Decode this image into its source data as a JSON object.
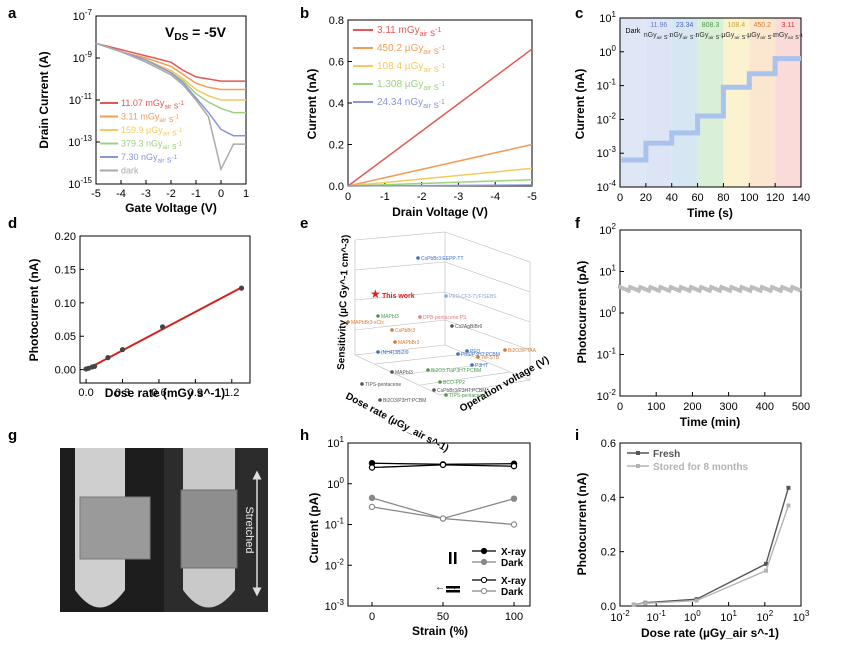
{
  "figure": {
    "panels": {
      "a": {
        "label": "a"
      },
      "b": {
        "label": "b"
      },
      "c": {
        "label": "c"
      },
      "d": {
        "label": "d"
      },
      "e": {
        "label": "e"
      },
      "f": {
        "label": "f"
      },
      "g": {
        "label": "g",
        "annotation": "Stretched"
      },
      "h": {
        "label": "h"
      },
      "i": {
        "label": "i"
      }
    }
  },
  "chart_data": [
    {
      "panel": "a",
      "type": "line",
      "annotation": "V_DS = -5V",
      "xlabel": "Gate Voltage (V)",
      "ylabel": "Drain Current (A)",
      "xlim": [
        -5,
        1
      ],
      "ylim_log10": [
        -15,
        -7
      ],
      "xticks": [
        "-5",
        "-4",
        "-3",
        "-2",
        "-1",
        "0",
        "1"
      ],
      "yticks": [
        "10^-15",
        "10^-13",
        "10^-11",
        "10^-9",
        "10^-7"
      ],
      "x": [
        -5,
        -4,
        -3,
        -2,
        -1.5,
        -1,
        -0.5,
        0,
        0.5,
        1
      ],
      "series": [
        {
          "name": "11.07 mGy_air s^-1",
          "color": "#e45756",
          "values_log10": [
            -8.3,
            -8.6,
            -8.9,
            -9.2,
            -9.6,
            -9.9,
            -10.0,
            -10.1,
            -10.1,
            -10.1
          ]
        },
        {
          "name": "3.11 mGy_air s^-1",
          "color": "#f39c57",
          "values_log10": [
            -8.3,
            -8.7,
            -9.0,
            -9.4,
            -9.8,
            -10.2,
            -10.4,
            -10.5,
            -10.5,
            -10.5
          ]
        },
        {
          "name": "159.9 µGy_air s^-1",
          "color": "#f7c95c",
          "values_log10": [
            -8.3,
            -8.7,
            -9.1,
            -9.6,
            -10.0,
            -10.5,
            -10.8,
            -11.0,
            -11.0,
            -11.0
          ]
        },
        {
          "name": "379.3 nGy_air s^-1",
          "color": "#9bd37c",
          "values_log10": [
            -8.3,
            -8.7,
            -9.1,
            -9.7,
            -10.1,
            -10.7,
            -11.1,
            -11.4,
            -11.6,
            -11.6
          ]
        },
        {
          "name": "7.30 nGy_air s^-1",
          "color": "#8b96d6",
          "values_log10": [
            -8.3,
            -8.7,
            -9.1,
            -9.7,
            -10.2,
            -10.9,
            -11.6,
            -12.4,
            -12.7,
            -12.7
          ]
        },
        {
          "name": "dark",
          "color": "#aaaaaa",
          "values_log10": [
            -8.3,
            -8.7,
            -9.2,
            -9.8,
            -10.3,
            -11.0,
            -11.8,
            -14.3,
            -13.1,
            -13.1
          ]
        }
      ]
    },
    {
      "panel": "b",
      "type": "line",
      "xlabel": "Drain Voltage (V)",
      "ylabel": "Current (nA)",
      "xlim": [
        0,
        -5
      ],
      "ylim": [
        0,
        0.8
      ],
      "xticks": [
        "0",
        "-1",
        "-2",
        "-3",
        "-4",
        "-5"
      ],
      "yticks": [
        "0.0",
        "0.2",
        "0.4",
        "0.6",
        "0.8"
      ],
      "series": [
        {
          "name": "3.11 mGy_air s^-1",
          "color": "#e45756",
          "end_value": 0.66
        },
        {
          "name": "450.2 µGy_air s^-1",
          "color": "#f39c57",
          "end_value": 0.2
        },
        {
          "name": "108.4 µGy_air s^-1",
          "color": "#f7c95c",
          "end_value": 0.085
        },
        {
          "name": "1.308 µGy_air s^-1",
          "color": "#9bd37c",
          "end_value": 0.03
        },
        {
          "name": "24.34 nGy_air s^-1",
          "color": "#8b96d6",
          "end_value": 0.005
        }
      ]
    },
    {
      "panel": "c",
      "type": "area",
      "xlabel": "Time (s)",
      "ylabel": "Current (nA)",
      "xlim": [
        0,
        140
      ],
      "ylim_log10": [
        -4,
        1
      ],
      "xticks": [
        "0",
        "20",
        "40",
        "60",
        "80",
        "100",
        "120",
        "140"
      ],
      "yticks": [
        "10^-4",
        "10^-3",
        "10^-2",
        "10^-1",
        "10^0",
        "10^1"
      ],
      "bands": [
        {
          "label": "Dark",
          "start": 0,
          "end": 20,
          "color": "#dfe7f6",
          "level_log10": -3.2
        },
        {
          "label": "11.96 nGy_air s^-1",
          "start": 20,
          "end": 40,
          "color": "#dde4f5",
          "level_log10": -2.7
        },
        {
          "label": "23.34 nGy_air s^-1",
          "start": 40,
          "end": 60,
          "color": "#d6e6f3",
          "level_log10": -2.4
        },
        {
          "label": "808.3 nGy_air s^-1",
          "start": 60,
          "end": 80,
          "color": "#d9efd8",
          "level_log10": -1.9
        },
        {
          "label": "108.4 µGy_air s^-1",
          "start": 80,
          "end": 100,
          "color": "#fbf3cf",
          "level_log10": -1.05
        },
        {
          "label": "450.2 µGy_air s^-1",
          "start": 100,
          "end": 120,
          "color": "#fbe6d0",
          "level_log10": -0.65
        },
        {
          "label": "3.11 mGy_air s^-1",
          "start": 120,
          "end": 140,
          "color": "#fbdada",
          "level_log10": -0.2
        }
      ]
    },
    {
      "panel": "d",
      "type": "scatter",
      "xlabel": "Dose rate (mGy s^-1)",
      "ylabel": "Photocurrent (nA)",
      "xlim": [
        -0.05,
        1.35
      ],
      "ylim": [
        -0.02,
        0.2
      ],
      "xticks": [
        "0.0",
        "0.3",
        "0.6",
        "0.9",
        "1.2"
      ],
      "yticks": [
        "0.00",
        "0.05",
        "0.10",
        "0.15",
        "0.20"
      ],
      "x": [
        0.0,
        0.02,
        0.05,
        0.07,
        0.18,
        0.3,
        0.63,
        1.28
      ],
      "values": [
        0.001,
        0.002,
        0.004,
        0.005,
        0.018,
        0.03,
        0.064,
        0.122
      ],
      "fit": {
        "from": [
          0.0,
          0.0
        ],
        "to": [
          1.28,
          0.123
        ]
      }
    },
    {
      "panel": "e",
      "type": "scatter",
      "xlabel": "Dose rate (µGy_air s^-1)",
      "ylabel": "Sensitivity (µC Gy^-1 cm^-3)",
      "zlabel": "Operation voltage (V)",
      "highlight": "This work",
      "points": [
        "CsPbBr3:EEPP-TT",
        "PEO-CF3-TVF/SEBS",
        "MAPbI3",
        "CsPbBr3",
        "MAPbBr3-xClx",
        "MAPbBr3",
        "(NH4)3Bi2I9",
        "DPB-pentacene:PS",
        "Cs2AgBiBr6",
        "Bi2O3/PTAA",
        "MAPbI3 ",
        "PFO",
        "PbS/P3HT:PCBM",
        "TeFSTB",
        "P3HT",
        "TIPS-pentacene",
        "Bi2O3/P3HT:PCBM",
        "Bi2O3:TiaP3HT:PCBM",
        "BCO-PP2",
        "CsPbBr3/P3HT:PCBM",
        "TIPS-pentacene "
      ]
    },
    {
      "panel": "f",
      "type": "line",
      "xlabel": "Time (min)",
      "ylabel": "Photocurrent (pA)",
      "xlim": [
        0,
        500
      ],
      "ylim_log10": [
        -2,
        2
      ],
      "xticks": [
        "0",
        "100",
        "200",
        "300",
        "400",
        "500"
      ],
      "yticks": [
        "10^-2",
        "10^-1",
        "10^0",
        "10^1",
        "10^2"
      ],
      "level_log10": 0.58
    },
    {
      "panel": "h",
      "type": "line",
      "xlabel": "Strain (%)",
      "ylabel": "Current (pA)",
      "xticks": [
        "0",
        "50",
        "100"
      ],
      "yticks": [
        "10^-3",
        "10^-2",
        "10^-1",
        "10^0",
        "10^1"
      ],
      "x": [
        0,
        50,
        100
      ],
      "series": [
        {
          "name": "X-ray",
          "orientation": "parallel",
          "values": [
            3.2,
            3.0,
            3.1
          ]
        },
        {
          "name": "Dark",
          "orientation": "parallel",
          "values": [
            0.45,
            0.14,
            0.43
          ]
        },
        {
          "name": "X-ray",
          "orientation": "perpendicular",
          "values": [
            2.5,
            2.9,
            2.7
          ]
        },
        {
          "name": "Dark",
          "orientation": "perpendicular",
          "values": [
            0.27,
            0.14,
            0.1
          ]
        }
      ]
    },
    {
      "panel": "i",
      "type": "line",
      "xlabel": "Dose rate (µGy_air s^-1)",
      "ylabel": "Photocurrent (nA)",
      "xticks": [
        "10^-2",
        "10^-1",
        "10^0",
        "10^1",
        "10^2",
        "10^3"
      ],
      "yticks": [
        "0.0",
        "0.2",
        "0.4",
        "0.6"
      ],
      "x": [
        0.024,
        0.05,
        1.3,
        108,
        450
      ],
      "series": [
        {
          "name": "Fresh",
          "color": "#555555",
          "values": [
            0.005,
            0.012,
            0.025,
            0.155,
            0.435
          ]
        },
        {
          "name": "Stored for 8 months",
          "color": "#b3b3b3",
          "values": [
            0.005,
            0.01,
            0.02,
            0.13,
            0.37
          ]
        }
      ]
    }
  ]
}
